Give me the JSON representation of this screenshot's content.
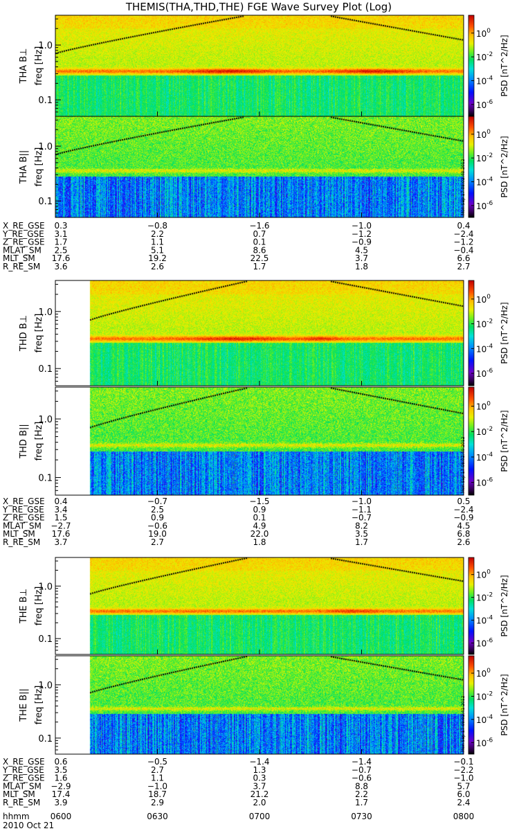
{
  "title": "THEMIS(THA,THD,THE) FGE Wave Survey Plot (Log)",
  "colorbar": {
    "label": "PSD [nT^2/Hz]",
    "ticks": [
      "10^0",
      "10^-2",
      "10^-4",
      "10^-6"
    ],
    "range_log10": [
      -7,
      1.5
    ]
  },
  "chart_data": {
    "type": "heatmap",
    "date": "2010 Oct 21",
    "x_axis": {
      "label": "hhmm",
      "ticks": [
        "0600",
        "0630",
        "0700",
        "0730",
        "0800"
      ],
      "range": [
        "06:00",
        "08:00"
      ]
    },
    "y_axis": {
      "label": "freq [Hz]",
      "scale": "log",
      "ticks": [
        "1.0",
        "0.1"
      ],
      "range_hz": [
        0.05,
        3.5
      ]
    },
    "probes": [
      {
        "probe": "THA",
        "data_start": "06:00",
        "panels": [
          {
            "label": "THA B⊥",
            "stamp": "Mon Sep 17 08:02:40 2012"
          },
          {
            "label": "THA B||",
            "stamp": "Mon Sep 17 08:02:40 2012"
          }
        ],
        "ephemeris": {
          "rows": [
            {
              "name": "X_RE_GSE",
              "values": [
                "0.3",
                "-0.8",
                "-1.6",
                "-1.0",
                "0.4"
              ]
            },
            {
              "name": "Y_RE_GSE",
              "values": [
                "3.1",
                "2.2",
                "0.7",
                "-1.2",
                "-2.4"
              ]
            },
            {
              "name": "Z_RE_GSE",
              "values": [
                "1.7",
                "1.1",
                "0.1",
                "-0.9",
                "-1.2"
              ]
            },
            {
              "name": "MLAT_SM",
              "values": [
                "2.5",
                "5.1",
                "8.6",
                "4.5",
                "-0.4"
              ]
            },
            {
              "name": "MLT_SM",
              "values": [
                "17.6",
                "19.2",
                "22.5",
                "3.7",
                "6.6"
              ]
            },
            {
              "name": "R_RE_SM",
              "values": [
                "3.6",
                "2.6",
                "1.7",
                "1.8",
                "2.7"
              ]
            }
          ]
        }
      },
      {
        "probe": "THD",
        "data_start": "06:10",
        "panels": [
          {
            "label": "THD B⊥",
            "stamp": "Mon Sep 17 08:02:40 2012"
          },
          {
            "label": "THD B||",
            "stamp": "Mon Sep 17 08:02:40 2012"
          }
        ],
        "ephemeris": {
          "rows": [
            {
              "name": "X_RE_GSE",
              "values": [
                "0.4",
                "-0.7",
                "-1.5",
                "-1.0",
                "0.5"
              ]
            },
            {
              "name": "Y_RE_GSE",
              "values": [
                "3.4",
                "2.5",
                "0.9",
                "-1.1",
                "-2.4"
              ]
            },
            {
              "name": "Z_RE_GSE",
              "values": [
                "1.5",
                "0.9",
                "0.1",
                "-0.7",
                "-0.9"
              ]
            },
            {
              "name": "MLAT_SM",
              "values": [
                "-2.7",
                "-0.6",
                "4.9",
                "8.2",
                "4.5"
              ]
            },
            {
              "name": "MLT_SM",
              "values": [
                "17.6",
                "19.0",
                "22.0",
                "3.5",
                "6.8"
              ]
            },
            {
              "name": "R_RE_SM",
              "values": [
                "3.7",
                "2.7",
                "1.8",
                "1.7",
                "2.6"
              ]
            }
          ]
        }
      },
      {
        "probe": "THE",
        "data_start": "06:10",
        "panels": [
          {
            "label": "THE B⊥",
            "stamp": "Mon Sep 17 08:02:41 2012"
          },
          {
            "label": "THE B||",
            "stamp": "Mon Sep 17 08:02:41 2012"
          }
        ],
        "ephemeris": {
          "rows": [
            {
              "name": "X_RE_GSE",
              "values": [
                "0.6",
                "-0.5",
                "-1.4",
                "-1.4",
                "-0.1"
              ]
            },
            {
              "name": "Y_RE_GSE",
              "values": [
                "3.5",
                "2.7",
                "1.3",
                "-0.7",
                "-2.2"
              ]
            },
            {
              "name": "Z_RE_GSE",
              "values": [
                "1.6",
                "1.1",
                "0.3",
                "-0.6",
                "-1.0"
              ]
            },
            {
              "name": "MLAT_SM",
              "values": [
                "-2.9",
                "-1.0",
                "3.7",
                "8.8",
                "5.7"
              ]
            },
            {
              "name": "MLT_SM",
              "values": [
                "17.4",
                "18.7",
                "21.2",
                "2.2",
                "6.0"
              ]
            },
            {
              "name": "R_RE_SM",
              "values": [
                "3.9",
                "2.9",
                "2.0",
                "1.7",
                "2.4"
              ]
            }
          ]
        }
      }
    ]
  }
}
